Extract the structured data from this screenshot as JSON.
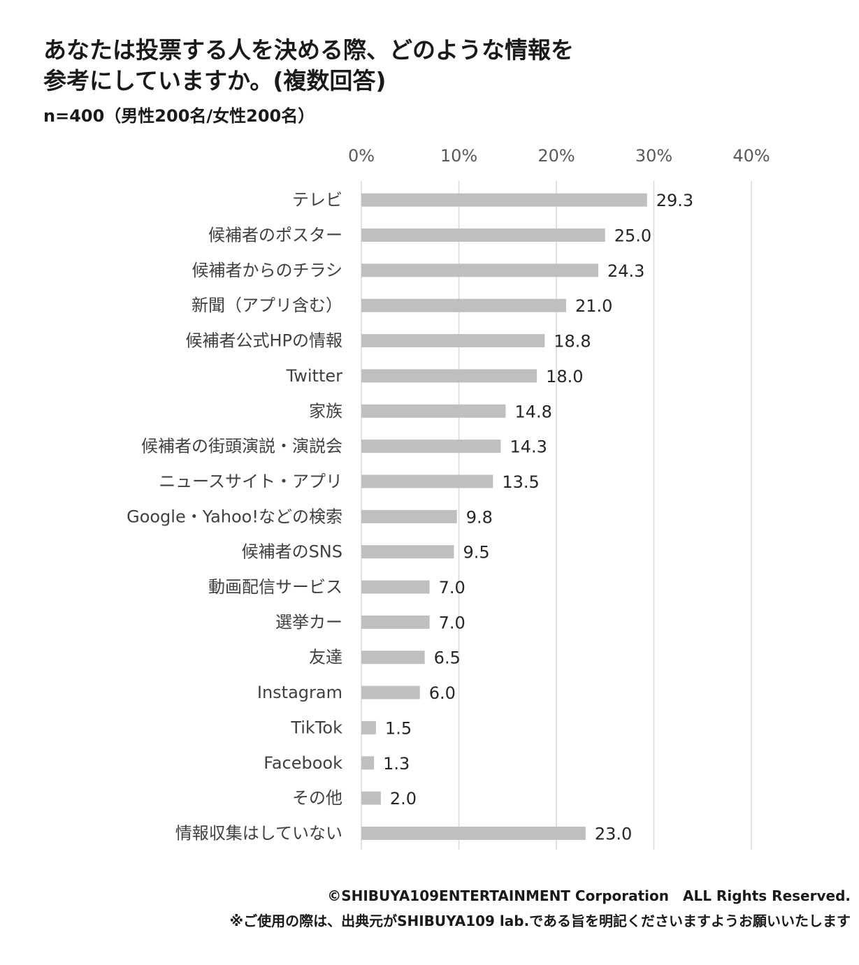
{
  "title": {
    "line1": "あなたは投票する人を決める際、どのような情報を",
    "line2": "参考にしていますか。(複数回答)"
  },
  "subtitle": "n=400（男性200名/女性200名）",
  "footer": {
    "copyright": "©SHIBUYA109ENTERTAINMENT Corporation　ALL Rights Reserved.",
    "note": "※ご使用の際は、出典元がSHIBUYA109 lab.である旨を明記くださいますようお願いいたします"
  },
  "colors": {
    "bar": "#bfbfbf",
    "grid": "#d9d9d9",
    "text": "#404040"
  },
  "chart_data": {
    "type": "bar",
    "orientation": "horizontal",
    "categories": [
      "テレビ",
      "候補者のポスター",
      "候補者からのチラシ",
      "新聞（アプリ含む）",
      "候補者公式HPの情報",
      "Twitter",
      "家族",
      "候補者の街頭演説・演説会",
      "ニュースサイト・アプリ",
      "Google・Yahoo!などの検索",
      "候補者のSNS",
      "動画配信サービス",
      "選挙カー",
      "友達",
      "Instagram",
      "TikTok",
      "Facebook",
      "その他",
      "情報収集はしていない"
    ],
    "values": [
      29.3,
      25.0,
      24.3,
      21.0,
      18.8,
      18.0,
      14.8,
      14.3,
      13.5,
      9.8,
      9.5,
      7.0,
      7.0,
      6.5,
      6.0,
      1.5,
      1.3,
      2.0,
      23.0
    ],
    "value_labels": [
      "29.3",
      "25.0",
      "24.3",
      "21.0",
      "18.8",
      "18.0",
      "14.8",
      "14.3",
      "13.5",
      "9.8",
      "9.5",
      "7.0",
      "7.0",
      "6.5",
      "6.0",
      "1.5",
      "1.3",
      "2.0",
      "23.0"
    ],
    "xlim": [
      0,
      40
    ],
    "ticks": [
      0,
      10,
      20,
      30,
      40
    ],
    "tick_labels": [
      "0%",
      "10%",
      "20%",
      "30%",
      "40%"
    ],
    "grid": true,
    "axis_position": "top"
  }
}
